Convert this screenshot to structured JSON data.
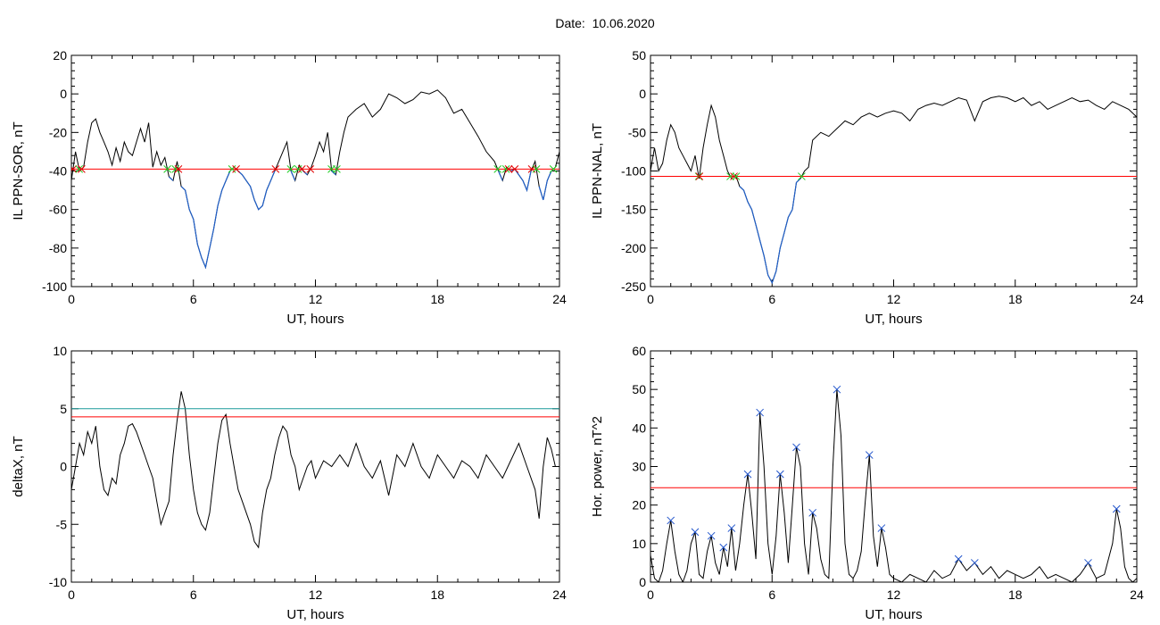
{
  "title": "Date:  10.06.2020",
  "colors": {
    "data": "#000000",
    "highlight": "#1f5fc8",
    "threshold_red": "#ff0000",
    "threshold_teal": "#1a9a9a",
    "marker_red": "#e00000",
    "marker_green": "#22cc22",
    "marker_blue": "#2255cc",
    "marker_purple": "#6a0dad"
  },
  "chart_data": [
    {
      "id": "sor",
      "type": "line",
      "xlabel": "UT, hours",
      "ylabel": "IL PPN-SOR, nT",
      "xlim": [
        0,
        24
      ],
      "ylim": [
        -100,
        20
      ],
      "xticks": [
        "0",
        "6",
        "12",
        "18",
        "24"
      ],
      "yticks": [
        "-100",
        "-80",
        "-60",
        "-40",
        "-20",
        "0",
        "20"
      ],
      "threshold": -39,
      "series": [
        {
          "x": [
            0,
            0.2,
            0.4,
            0.6,
            0.8,
            1.0,
            1.2,
            1.4,
            1.6,
            1.8,
            2.0,
            2.2,
            2.4,
            2.6,
            2.8,
            3.0,
            3.2,
            3.4,
            3.6,
            3.8,
            4.0,
            4.2,
            4.4,
            4.6,
            4.8,
            5.0,
            5.2,
            5.4,
            5.6,
            5.8,
            6.0,
            6.2,
            6.4,
            6.6,
            6.8,
            7.0,
            7.2,
            7.4,
            7.6,
            7.8,
            8.0,
            8.2,
            8.4,
            8.6,
            8.8,
            9.0,
            9.2,
            9.4,
            9.6,
            9.8,
            10.0,
            10.2,
            10.4,
            10.6,
            10.8,
            11.0,
            11.2,
            11.4,
            11.6,
            11.8,
            12.0,
            12.2,
            12.4,
            12.6,
            12.8,
            13.0,
            13.2,
            13.4,
            13.6,
            13.8,
            14.0,
            14.4,
            14.8,
            15.2,
            15.6,
            16.0,
            16.4,
            16.8,
            17.2,
            17.6,
            18.0,
            18.4,
            18.8,
            19.2,
            19.6,
            20.0,
            20.4,
            20.8,
            21.0,
            21.2,
            21.4,
            21.6,
            21.8,
            22.0,
            22.2,
            22.4,
            22.6,
            22.8,
            23.0,
            23.2,
            23.4,
            23.6,
            23.8,
            24.0
          ],
          "y": [
            -45,
            -30,
            -40,
            -38,
            -25,
            -15,
            -13,
            -20,
            -25,
            -30,
            -37,
            -28,
            -35,
            -25,
            -30,
            -32,
            -25,
            -18,
            -25,
            -15,
            -38,
            -30,
            -37,
            -33,
            -43,
            -45,
            -35,
            -48,
            -50,
            -60,
            -65,
            -78,
            -85,
            -90,
            -80,
            -70,
            -58,
            -50,
            -45,
            -40,
            -38,
            -40,
            -42,
            -45,
            -48,
            -55,
            -60,
            -58,
            -50,
            -45,
            -40,
            -35,
            -30,
            -25,
            -40,
            -45,
            -37,
            -40,
            -42,
            -38,
            -32,
            -25,
            -30,
            -20,
            -40,
            -42,
            -30,
            -20,
            -12,
            -10,
            -8,
            -5,
            -12,
            -8,
            0,
            -2,
            -5,
            -3,
            1,
            0,
            2,
            -2,
            -10,
            -8,
            -15,
            -22,
            -30,
            -35,
            -40,
            -45,
            -38,
            -40,
            -39,
            -42,
            -45,
            -50,
            -40,
            -35,
            -48,
            -55,
            -45,
            -40,
            -38,
            -30
          ]
        }
      ]
    },
    {
      "id": "nal",
      "type": "line",
      "xlabel": "UT, hours",
      "ylabel": "IL PPN-NAL, nT",
      "xlim": [
        0,
        24
      ],
      "ylim": [
        -250,
        50
      ],
      "xticks": [
        "0",
        "6",
        "12",
        "18",
        "24"
      ],
      "yticks": [
        "-250",
        "-200",
        "-150",
        "-100",
        "-50",
        "0",
        "50"
      ],
      "threshold": -107,
      "series": [
        {
          "x": [
            0,
            0.2,
            0.4,
            0.6,
            0.8,
            1.0,
            1.2,
            1.4,
            1.6,
            1.8,
            2.0,
            2.2,
            2.4,
            2.6,
            2.8,
            3.0,
            3.2,
            3.4,
            3.6,
            3.8,
            4.0,
            4.2,
            4.4,
            4.6,
            4.8,
            5.0,
            5.2,
            5.4,
            5.6,
            5.8,
            6.0,
            6.2,
            6.4,
            6.6,
            6.8,
            7.0,
            7.2,
            7.4,
            7.6,
            7.8,
            8.0,
            8.4,
            8.8,
            9.2,
            9.6,
            10.0,
            10.4,
            10.8,
            11.2,
            11.6,
            12.0,
            12.4,
            12.8,
            13.2,
            13.6,
            14.0,
            14.4,
            14.8,
            15.2,
            15.6,
            16.0,
            16.4,
            16.8,
            17.2,
            17.6,
            18.0,
            18.4,
            18.8,
            19.2,
            19.6,
            20.0,
            20.4,
            20.8,
            21.2,
            21.6,
            22.0,
            22.4,
            22.8,
            23.2,
            23.6,
            24.0
          ],
          "y": [
            -100,
            -70,
            -100,
            -90,
            -60,
            -40,
            -50,
            -70,
            -80,
            -90,
            -100,
            -80,
            -110,
            -70,
            -40,
            -15,
            -30,
            -60,
            -80,
            -100,
            -110,
            -105,
            -120,
            -125,
            -140,
            -150,
            -170,
            -190,
            -210,
            -235,
            -245,
            -230,
            -200,
            -180,
            -160,
            -150,
            -115,
            -110,
            -100,
            -95,
            -60,
            -50,
            -55,
            -45,
            -35,
            -40,
            -30,
            -25,
            -30,
            -25,
            -22,
            -25,
            -35,
            -20,
            -15,
            -12,
            -15,
            -10,
            -5,
            -8,
            -35,
            -10,
            -5,
            -3,
            -5,
            -10,
            -5,
            -15,
            -10,
            -20,
            -15,
            -10,
            -5,
            -10,
            -8,
            -15,
            -20,
            -10,
            -15,
            -20,
            -30
          ]
        }
      ]
    },
    {
      "id": "deltax",
      "type": "line",
      "xlabel": "UT, hours",
      "ylabel": "deltaX, nT",
      "xlim": [
        0,
        24
      ],
      "ylim": [
        -10,
        10
      ],
      "xticks": [
        "0",
        "6",
        "12",
        "18",
        "24"
      ],
      "yticks": [
        "-10",
        "-5",
        "0",
        "5",
        "10"
      ],
      "thresholds": [
        5,
        4.3
      ],
      "series": [
        {
          "x": [
            0,
            0.2,
            0.4,
            0.6,
            0.8,
            1.0,
            1.2,
            1.4,
            1.6,
            1.8,
            2.0,
            2.2,
            2.4,
            2.6,
            2.8,
            3.0,
            3.2,
            3.4,
            3.6,
            3.8,
            4.0,
            4.2,
            4.4,
            4.6,
            4.8,
            5.0,
            5.2,
            5.4,
            5.6,
            5.8,
            6.0,
            6.2,
            6.4,
            6.6,
            6.8,
            7.0,
            7.2,
            7.4,
            7.6,
            7.8,
            8.0,
            8.2,
            8.4,
            8.6,
            8.8,
            9.0,
            9.2,
            9.4,
            9.6,
            9.8,
            10.0,
            10.2,
            10.4,
            10.6,
            10.8,
            11.0,
            11.2,
            11.4,
            11.6,
            11.8,
            12.0,
            12.4,
            12.8,
            13.2,
            13.6,
            14.0,
            14.4,
            14.8,
            15.2,
            15.6,
            16.0,
            16.4,
            16.8,
            17.2,
            17.6,
            18.0,
            18.4,
            18.8,
            19.2,
            19.6,
            20.0,
            20.4,
            20.8,
            21.2,
            21.6,
            22.0,
            22.4,
            22.8,
            23.0,
            23.2,
            23.4,
            23.6,
            23.8,
            24.0
          ],
          "y": [
            -2,
            0,
            2,
            1,
            3,
            2,
            3.5,
            0,
            -2,
            -2.5,
            -1,
            -1.5,
            1,
            2,
            3.5,
            3.7,
            3,
            2,
            1,
            0,
            -1,
            -3,
            -5,
            -4,
            -3,
            1,
            4,
            6.5,
            5,
            1,
            -2,
            -4,
            -5,
            -5.5,
            -4,
            -1,
            2,
            4,
            4.5,
            2,
            0,
            -2,
            -3,
            -4,
            -5,
            -6.5,
            -7,
            -4,
            -2,
            -1,
            1,
            2.5,
            3.5,
            3,
            1,
            0,
            -2,
            -1,
            0,
            0.5,
            -1,
            0.5,
            0,
            1,
            0,
            2,
            0,
            -1,
            0.5,
            -2.5,
            1,
            0,
            2,
            0,
            -1,
            1,
            0,
            -1,
            0.5,
            0,
            -1,
            1,
            0,
            -1,
            0.5,
            2,
            0,
            -2,
            -4.5,
            0,
            2.5,
            1.5,
            0,
            0
          ]
        }
      ]
    },
    {
      "id": "power",
      "type": "line",
      "xlabel": "UT, hours",
      "ylabel": "Hor. power, nT^2",
      "xlim": [
        0,
        24
      ],
      "ylim": [
        0,
        60
      ],
      "xticks": [
        "0",
        "6",
        "12",
        "18",
        "24"
      ],
      "yticks": [
        "0",
        "10",
        "20",
        "30",
        "40",
        "50",
        "60"
      ],
      "threshold": 24.5,
      "series": [
        {
          "x": [
            0,
            0.2,
            0.4,
            0.6,
            0.8,
            1.0,
            1.2,
            1.4,
            1.6,
            1.8,
            2.0,
            2.2,
            2.4,
            2.6,
            2.8,
            3.0,
            3.2,
            3.4,
            3.6,
            3.8,
            4.0,
            4.2,
            4.4,
            4.6,
            4.8,
            5.0,
            5.2,
            5.4,
            5.6,
            5.8,
            6.0,
            6.2,
            6.4,
            6.6,
            6.8,
            7.0,
            7.2,
            7.4,
            7.6,
            7.8,
            8.0,
            8.2,
            8.4,
            8.6,
            8.8,
            9.0,
            9.2,
            9.4,
            9.6,
            9.8,
            10.0,
            10.2,
            10.4,
            10.6,
            10.8,
            11.0,
            11.2,
            11.4,
            11.6,
            11.8,
            12.0,
            12.4,
            12.8,
            13.2,
            13.6,
            14.0,
            14.4,
            14.8,
            15.2,
            15.6,
            16.0,
            16.4,
            16.8,
            17.2,
            17.6,
            18.0,
            18.4,
            18.8,
            19.2,
            19.6,
            20.0,
            20.4,
            20.8,
            21.2,
            21.6,
            22.0,
            22.4,
            22.8,
            23.0,
            23.2,
            23.4,
            23.6,
            23.8,
            24.0
          ],
          "y": [
            7,
            1,
            0,
            3,
            10,
            16,
            8,
            2,
            0,
            3,
            10,
            13,
            2,
            1,
            8,
            12,
            5,
            2,
            9,
            4,
            14,
            3,
            10,
            20,
            28,
            18,
            6,
            44,
            30,
            10,
            2,
            12,
            28,
            18,
            5,
            20,
            35,
            30,
            10,
            2,
            18,
            14,
            6,
            2,
            1,
            30,
            50,
            38,
            10,
            2,
            1,
            3,
            8,
            21,
            33,
            12,
            4,
            14,
            9,
            2,
            1,
            0,
            2,
            1,
            0,
            3,
            1,
            2,
            6,
            3,
            5,
            2,
            4,
            1,
            3,
            2,
            1,
            2,
            4,
            1,
            2,
            1,
            0,
            2,
            5,
            1,
            2,
            10,
            19,
            14,
            4,
            1,
            0,
            1
          ]
        }
      ]
    }
  ]
}
